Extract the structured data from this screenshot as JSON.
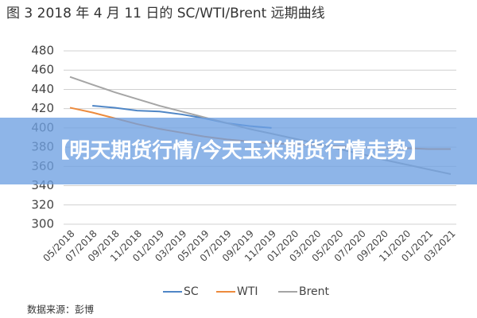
{
  "chart_data": {
    "type": "line",
    "title": "图 3 2018 年 4 月 11 日的 SC/WTI/Brent 远期曲线",
    "source": "数据来源：彭博",
    "categories": [
      "05/2018",
      "07/2018",
      "09/2018",
      "11/2018",
      "01/2019",
      "03/2019",
      "05/2019",
      "07/2019",
      "09/2019",
      "11/2019",
      "01/2020",
      "03/2020",
      "05/2020",
      "07/2020",
      "09/2020",
      "11/2020",
      "01/2021",
      "03/2021"
    ],
    "series": [
      {
        "name": "SC",
        "color": "#4f86c6",
        "values": [
          null,
          423,
          421,
          418,
          417,
          414,
          410,
          405,
          402,
          400,
          null,
          null,
          null,
          null,
          null,
          null,
          null,
          null
        ]
      },
      {
        "name": "WTI",
        "color": "#ed8b3d",
        "values": [
          421,
          416,
          410,
          404,
          399,
          395,
          391,
          388,
          386,
          384,
          383,
          382,
          381,
          380,
          379,
          379,
          378,
          378
        ]
      },
      {
        "name": "Brent",
        "color": "#a5a5a5",
        "values": [
          453,
          445,
          437,
          430,
          423,
          417,
          411,
          405,
          399,
          394,
          389,
          384,
          378,
          373,
          367,
          362,
          357,
          352
        ]
      }
    ],
    "ylim": [
      300,
      480
    ],
    "yticks": [
      300,
      320,
      340,
      360,
      380,
      400,
      420,
      440,
      460,
      480
    ],
    "grid": true
  },
  "banner": {
    "text": "【明天期货行情/今天玉米期货行情走势】"
  }
}
